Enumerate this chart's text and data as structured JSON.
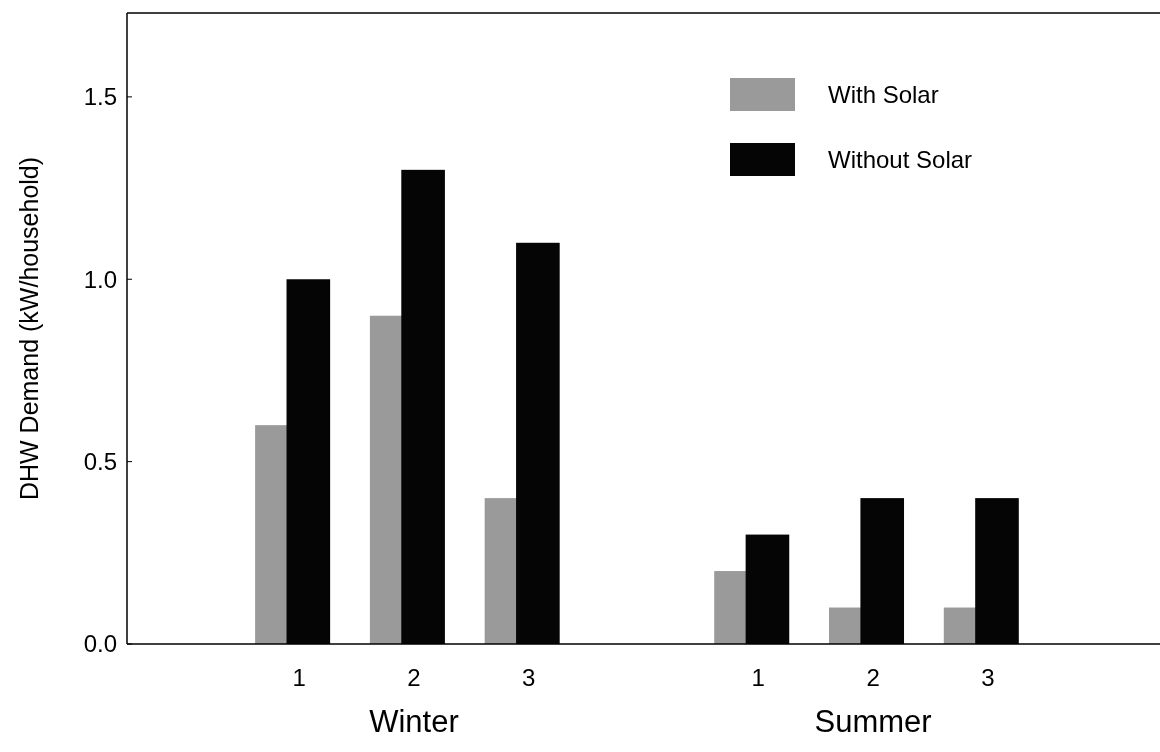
{
  "chart_data": {
    "type": "bar",
    "ylabel": "DHW Demand (kW/household)",
    "categories": [
      null,
      "1",
      "2",
      "3",
      null,
      "1",
      "2",
      "3",
      null
    ],
    "series": [
      {
        "name": "With Solar",
        "color": "#9a9a9a",
        "values": [
          null,
          0.6,
          0.9,
          0.4,
          null,
          0.2,
          0.1,
          0.1,
          null
        ]
      },
      {
        "name": "Without Solar",
        "color": "#050505",
        "values": [
          null,
          1.0,
          1.3,
          1.1,
          null,
          0.3,
          0.4,
          0.4,
          null
        ]
      }
    ],
    "ylim": [
      0,
      1.73
    ],
    "yticks": [
      {
        "value": 0,
        "label": "0.0"
      },
      {
        "value": 0.5,
        "label": "0.5"
      },
      {
        "value": 1,
        "label": "1.0"
      },
      {
        "value": 1.5,
        "label": "1.5"
      }
    ],
    "annotations": [
      "Winter",
      "Summer"
    ],
    "legend": "top right"
  }
}
